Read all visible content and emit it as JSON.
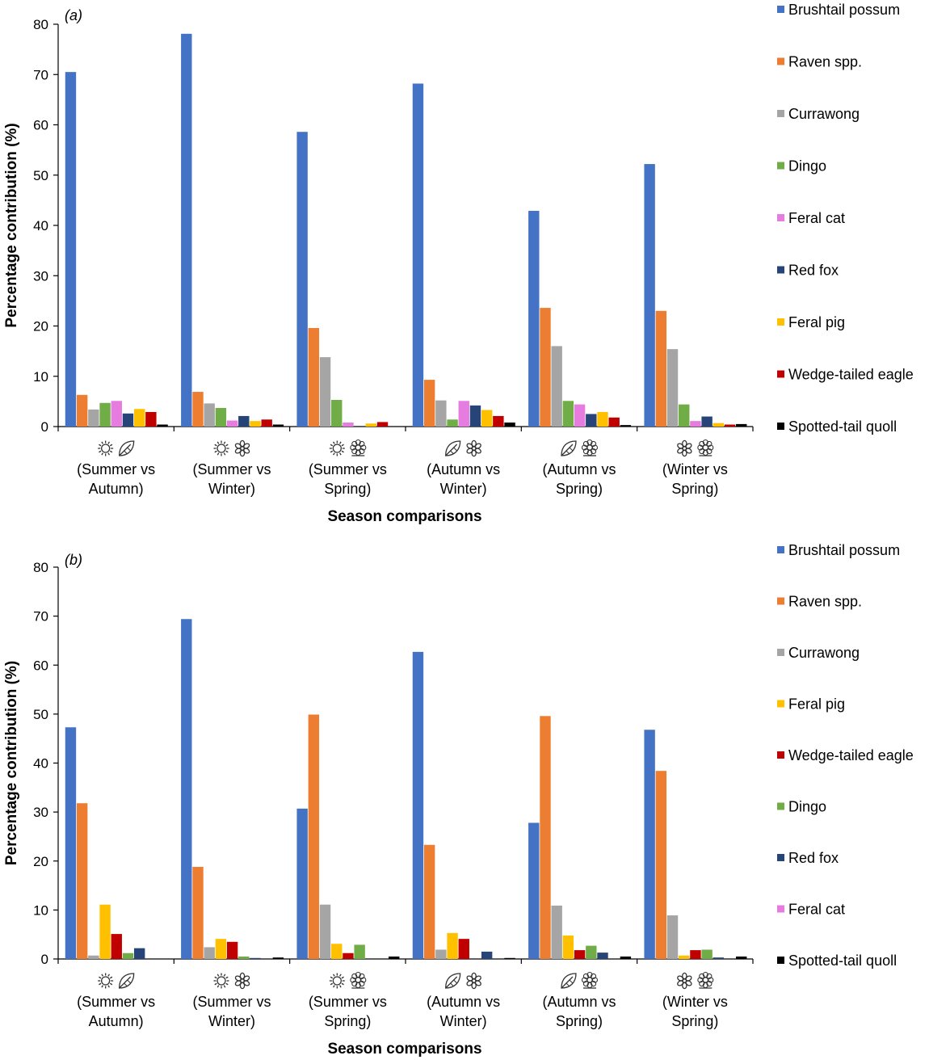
{
  "chart_data": [
    {
      "type": "bar",
      "panel_label": "(a)",
      "xlabel": "Season comparisons",
      "ylabel": "Percentage contribution (%)",
      "ylim": [
        0,
        80
      ],
      "yticks": [
        0,
        10,
        20,
        30,
        40,
        50,
        60,
        70,
        80
      ],
      "grid": false,
      "legend_position": "right",
      "categories": [
        {
          "icons": [
            "sun-icon",
            "leaf-icon"
          ],
          "line1": "(Summer vs",
          "line2": "Autumn)"
        },
        {
          "icons": [
            "sun-icon",
            "snowflake-icon"
          ],
          "line1": "(Summer vs",
          "line2": "Winter)"
        },
        {
          "icons": [
            "sun-icon",
            "flower-icon"
          ],
          "line1": "(Summer vs",
          "line2": "Spring)"
        },
        {
          "icons": [
            "leaf-icon",
            "snowflake-icon"
          ],
          "line1": "(Autumn vs",
          "line2": "Winter)"
        },
        {
          "icons": [
            "leaf-icon",
            "flower-icon"
          ],
          "line1": "(Autumn vs",
          "line2": "Spring)"
        },
        {
          "icons": [
            "snowflake-icon",
            "flower-icon"
          ],
          "line1": "(Winter vs",
          "line2": "Spring)"
        }
      ],
      "series": [
        {
          "name": "Brushtail possum",
          "color": "#4472C4",
          "values": [
            70.5,
            78.1,
            58.6,
            68.2,
            42.9,
            52.2
          ]
        },
        {
          "name": "Raven spp.",
          "color": "#ED7D31",
          "values": [
            6.3,
            6.9,
            19.6,
            9.3,
            23.6,
            23.0
          ]
        },
        {
          "name": "Currawong",
          "color": "#A5A5A5",
          "values": [
            3.4,
            4.6,
            13.8,
            5.2,
            16.0,
            15.4
          ]
        },
        {
          "name": "Dingo",
          "color": "#70AD47",
          "values": [
            4.7,
            3.7,
            5.3,
            1.4,
            5.1,
            4.4
          ]
        },
        {
          "name": "Feral cat",
          "color": "#E67BE0",
          "values": [
            5.1,
            1.2,
            0.8,
            5.1,
            4.4,
            1.1
          ]
        },
        {
          "name": "Red fox",
          "color": "#264478",
          "values": [
            2.6,
            2.1,
            0.0,
            4.2,
            2.5,
            2.0
          ]
        },
        {
          "name": "Feral pig",
          "color": "#FFC000",
          "values": [
            3.5,
            1.1,
            0.6,
            3.3,
            2.9,
            0.7
          ]
        },
        {
          "name": "Wedge-tailed eagle",
          "color": "#C00000",
          "values": [
            2.9,
            1.4,
            0.9,
            2.1,
            1.8,
            0.4
          ]
        },
        {
          "name": "Spotted-tail quoll",
          "color": "#000000",
          "values": [
            0.4,
            0.4,
            0.0,
            0.8,
            0.3,
            0.5
          ]
        }
      ]
    },
    {
      "type": "bar",
      "panel_label": "(b)",
      "xlabel": "Season comparisons",
      "ylabel": "Percentage contribution (%)",
      "ylim": [
        0,
        80
      ],
      "yticks": [
        0,
        10,
        20,
        30,
        40,
        50,
        60,
        70,
        80
      ],
      "grid": false,
      "legend_position": "right",
      "categories": [
        {
          "icons": [
            "sun-icon",
            "leaf-icon"
          ],
          "line1": "(Summer vs",
          "line2": "Autumn)"
        },
        {
          "icons": [
            "sun-icon",
            "snowflake-icon"
          ],
          "line1": "(Summer vs",
          "line2": "Winter)"
        },
        {
          "icons": [
            "sun-icon",
            "flower-icon"
          ],
          "line1": "(Summer vs",
          "line2": "Spring)"
        },
        {
          "icons": [
            "leaf-icon",
            "snowflake-icon"
          ],
          "line1": "(Autumn vs",
          "line2": "Winter)"
        },
        {
          "icons": [
            "leaf-icon",
            "flower-icon"
          ],
          "line1": "(Autumn vs",
          "line2": "Spring)"
        },
        {
          "icons": [
            "snowflake-icon",
            "flower-icon"
          ],
          "line1": "(Winter vs",
          "line2": "Spring)"
        }
      ],
      "series": [
        {
          "name": "Brushtail possum",
          "color": "#4472C4",
          "values": [
            47.3,
            69.4,
            30.7,
            62.7,
            27.8,
            46.8
          ]
        },
        {
          "name": "Raven spp.",
          "color": "#ED7D31",
          "values": [
            31.8,
            18.8,
            49.9,
            23.3,
            49.6,
            38.4
          ]
        },
        {
          "name": "Currawong",
          "color": "#A5A5A5",
          "values": [
            0.7,
            2.4,
            11.1,
            1.9,
            10.9,
            8.9
          ]
        },
        {
          "name": "Feral pig",
          "color": "#FFC000",
          "values": [
            11.1,
            4.1,
            3.1,
            5.3,
            4.8,
            0.7
          ]
        },
        {
          "name": "Wedge-tailed eagle",
          "color": "#C00000",
          "values": [
            5.1,
            3.5,
            1.2,
            4.1,
            1.8,
            1.8
          ]
        },
        {
          "name": "Dingo",
          "color": "#70AD47",
          "values": [
            1.2,
            0.5,
            2.9,
            0.0,
            2.7,
            1.9
          ]
        },
        {
          "name": "Red fox",
          "color": "#264478",
          "values": [
            2.2,
            0.2,
            0.0,
            1.5,
            1.3,
            0.3
          ]
        },
        {
          "name": "Feral cat",
          "color": "#E67BE0",
          "values": [
            0.0,
            0.0,
            0.0,
            0.0,
            0.0,
            0.0
          ]
        },
        {
          "name": "Spotted-tail quoll",
          "color": "#000000",
          "values": [
            0.0,
            0.3,
            0.5,
            0.2,
            0.5,
            0.5
          ]
        }
      ]
    }
  ]
}
